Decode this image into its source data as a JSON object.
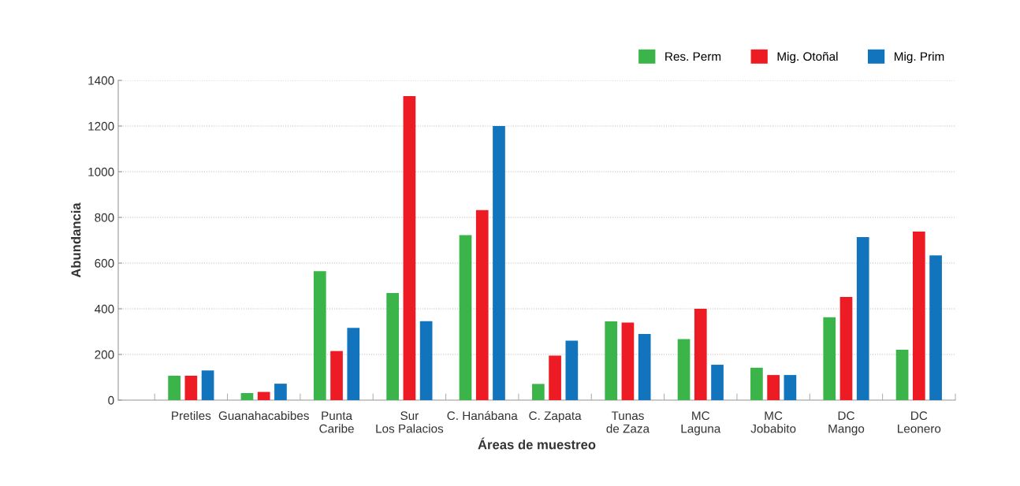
{
  "chart_data": {
    "type": "bar",
    "xlabel": "Áreas de muestreo",
    "ylabel": "Abundancia",
    "categories": [
      "Pretiles",
      "Guanahacabibes",
      "Punta\nCaribe",
      "Sur\nLos Palacios",
      "C. Hanábana",
      "C. Zapata",
      "Tunas\nde Zaza",
      "MC\nLaguna",
      "MC\nJobabito",
      "DC\nMango",
      "DC\nLeonero"
    ],
    "series": [
      {
        "name": "Res. Perm",
        "color": "#3bb54a",
        "values": [
          107,
          31,
          565,
          469,
          722,
          71,
          345,
          267,
          142,
          363,
          221
        ]
      },
      {
        "name": "Mig. Otoñal",
        "color": "#ed1c24",
        "values": [
          107,
          36,
          215,
          1331,
          832,
          195,
          340,
          400,
          110,
          452,
          738
        ]
      },
      {
        "name": "Mig. Prim",
        "color": "#1174bd",
        "values": [
          130,
          72,
          316,
          346,
          1200,
          260,
          290,
          155,
          110,
          714,
          634
        ]
      }
    ],
    "ylim": [
      0,
      1400
    ],
    "yticks": [
      0,
      200,
      400,
      600,
      800,
      1000,
      1200,
      1400
    ],
    "grid": "y",
    "legend": "top right"
  }
}
